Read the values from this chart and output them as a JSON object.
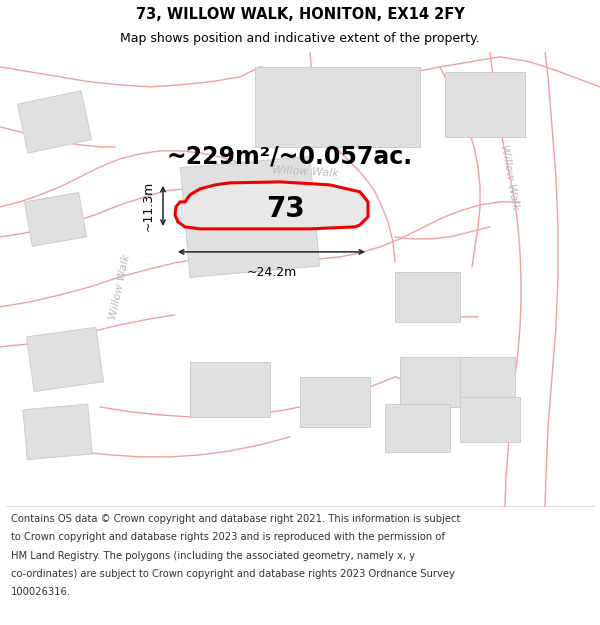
{
  "title_line1": "73, WILLOW WALK, HONITON, EX14 2FY",
  "title_line2": "Map shows position and indicative extent of the property.",
  "area_text": "~229m²/~0.057ac.",
  "property_number": "73",
  "dim_width": "~24.2m",
  "dim_height": "~11.3m",
  "road_label_left": "Willow Walk",
  "road_label_right": "Willow Walk",
  "road_label_center": "Willow Walk",
  "copyright_lines": [
    "Contains OS data © Crown copyright and database right 2021. This information is subject",
    "to Crown copyright and database rights 2023 and is reproduced with the permission of",
    "HM Land Registry. The polygons (including the associated geometry, namely x, y",
    "co-ordinates) are subject to Crown copyright and database rights 2023 Ordnance Survey",
    "100026316."
  ],
  "map_bg_color": "#ffffff",
  "road_line_color": "#f0a0a0",
  "building_color": "#e0e0e0",
  "building_edge_color": "#cccccc",
  "property_fill": "#e8e8e8",
  "property_edge_color": "#ee0000",
  "dim_line_color": "#222222",
  "road_label_color": "#bbbbbb",
  "title_fontsize": 10.5,
  "subtitle_fontsize": 9,
  "area_fontsize": 17,
  "number_fontsize": 20,
  "road_label_fontsize": 8,
  "copyright_fontsize": 7.2
}
